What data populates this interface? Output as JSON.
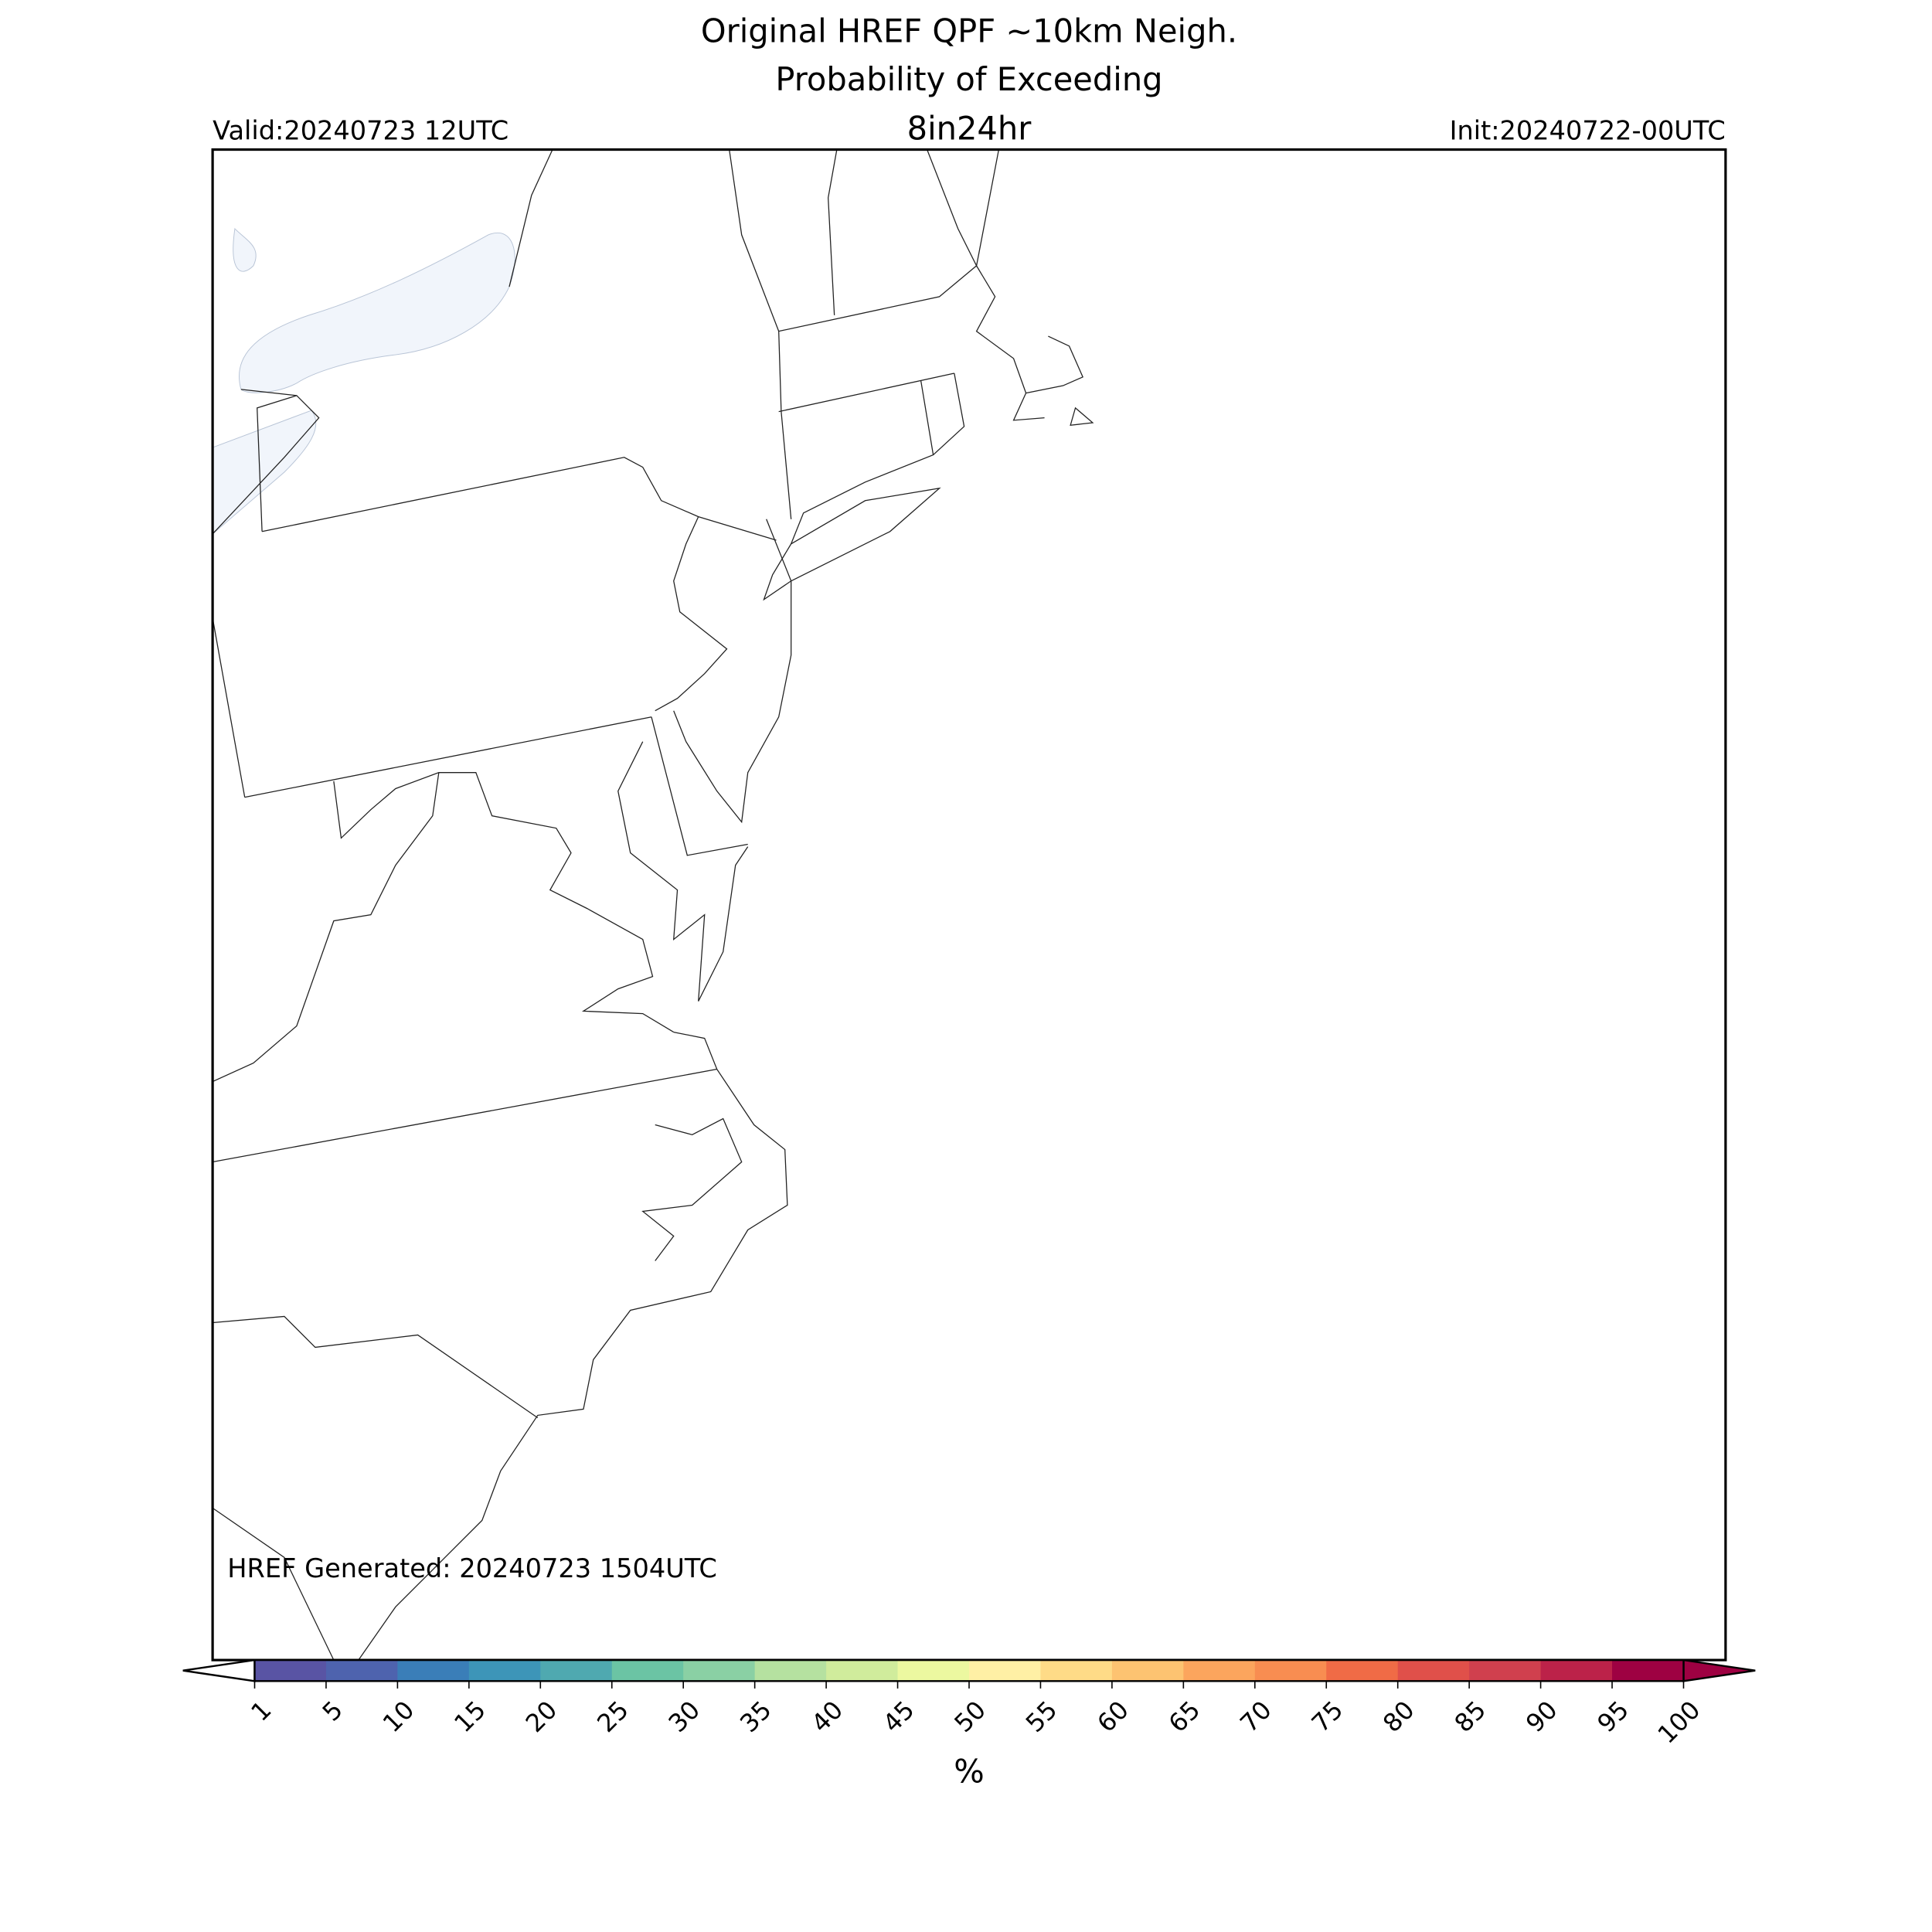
{
  "header": {
    "title_lines": [
      "Original HREF QPF ~10km Neigh.",
      "Probability of Exceeding",
      "8in24hr"
    ],
    "valid": "Valid:20240723 12UTC",
    "init": "Init:20240722-00UTC"
  },
  "map": {
    "annotation": "HREF Generated: 20240723 1504UTC"
  },
  "colorbar": {
    "ticks": [
      1,
      5,
      10,
      15,
      20,
      25,
      30,
      35,
      40,
      45,
      50,
      55,
      60,
      65,
      70,
      75,
      80,
      85,
      90,
      95,
      100
    ],
    "colors": [
      "#5954a4",
      "#4e63ae",
      "#3a7eb8",
      "#3d95b8",
      "#4fa9b0",
      "#6bc4a4",
      "#8ad0a4",
      "#b5e1a0",
      "#d0ec9c",
      "#ecf8a0",
      "#fff0a5",
      "#fedb87",
      "#fdc371",
      "#fca55d",
      "#f88d51",
      "#f06b46",
      "#e0504a",
      "#d0404e",
      "#bc2249",
      "#9e0142"
    ],
    "under_color": "#ffffff",
    "over_color": "#9e0142",
    "label": "%"
  }
}
